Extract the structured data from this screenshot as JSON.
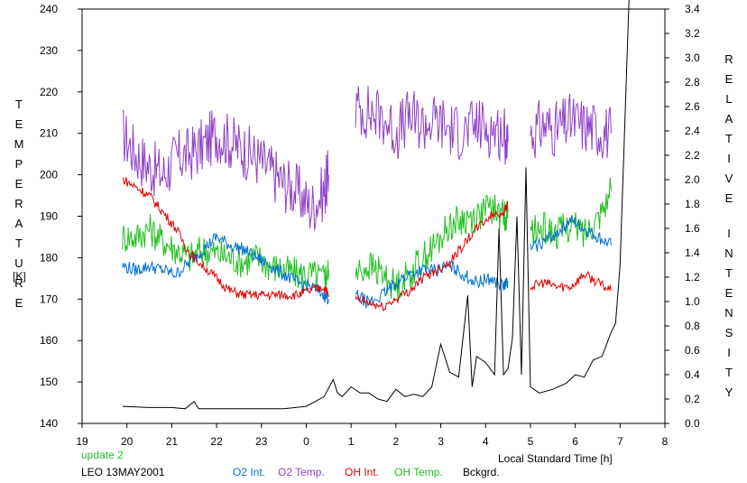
{
  "chart_data": {
    "type": "line",
    "title": "",
    "left_axis": {
      "title": "TEMPERATURE",
      "unit": "[K]",
      "range": [
        140,
        240
      ],
      "ticks": [
        140,
        150,
        160,
        170,
        180,
        190,
        200,
        210,
        220,
        230,
        240
      ]
    },
    "right_axis": {
      "title": "RELATIVE INTENSITY",
      "range": [
        0.0,
        3.4
      ],
      "ticks": [
        "0.0",
        "0.2",
        "0.4",
        "0.6",
        "0.8",
        "1.0",
        "1.2",
        "1.4",
        "1.6",
        "1.8",
        "2.0",
        "2.2",
        "2.4",
        "2.6",
        "2.8",
        "3.0",
        "3.2",
        "3.4"
      ]
    },
    "x_axis": {
      "label": "Local Standard Time [h]",
      "range": [
        19,
        32
      ],
      "tick_labels": [
        "19",
        "20",
        "21",
        "22",
        "23",
        "0",
        "1",
        "2",
        "3",
        "4",
        "5",
        "6",
        "7",
        "8"
      ]
    },
    "annotations": {
      "update": "update 2",
      "site_date": "LEO 13MAY2001"
    },
    "legend": [
      {
        "label": "O2 Int.",
        "color": "#0070d0"
      },
      {
        "label": "O2 Temp.",
        "color": "#9040c8"
      },
      {
        "label": "OH Int.",
        "color": "#e00000"
      },
      {
        "label": "OH Temp.",
        "color": "#20c020"
      },
      {
        "label": "Bckgrd.",
        "color": "#000000"
      }
    ],
    "series": [
      {
        "name": "O2 Temp.",
        "color": "#9040c8",
        "axis": "left",
        "segments": [
          [
            [
              19.9,
              210
            ],
            [
              20.2,
              205
            ],
            [
              20.5,
              202
            ],
            [
              20.8,
              200
            ],
            [
              21.1,
              204
            ],
            [
              21.4,
              205
            ],
            [
              21.7,
              207
            ],
            [
              22.0,
              210
            ],
            [
              22.3,
              208
            ],
            [
              22.6,
              206
            ],
            [
              22.9,
              204
            ],
            [
              23.2,
              201
            ],
            [
              23.5,
              198
            ],
            [
              23.8,
              196
            ],
            [
              24.1,
              192
            ],
            [
              24.4,
              196
            ],
            [
              24.5,
              200
            ]
          ],
          [
            [
              25.1,
              216
            ],
            [
              25.4,
              215
            ],
            [
              25.7,
              214
            ],
            [
              26.0,
              210
            ],
            [
              26.3,
              214
            ],
            [
              26.6,
              212
            ],
            [
              26.9,
              213
            ],
            [
              27.2,
              211
            ],
            [
              27.5,
              210
            ],
            [
              27.8,
              212
            ],
            [
              28.1,
              211
            ],
            [
              28.4,
              210
            ],
            [
              28.5,
              208
            ]
          ],
          [
            [
              29.0,
              210
            ],
            [
              29.3,
              212
            ],
            [
              29.6,
              211
            ],
            [
              29.9,
              213
            ],
            [
              30.2,
              212
            ],
            [
              30.5,
              211
            ],
            [
              30.8,
              210
            ]
          ]
        ]
      },
      {
        "name": "OH Temp.",
        "color": "#20c020",
        "axis": "left",
        "segments": [
          [
            [
              19.9,
              185
            ],
            [
              20.2,
              185
            ],
            [
              20.5,
              187
            ],
            [
              20.8,
              184
            ],
            [
              21.1,
              182
            ],
            [
              21.4,
              180
            ],
            [
              21.7,
              182
            ],
            [
              22.0,
              181
            ],
            [
              22.3,
              180
            ],
            [
              22.6,
              179
            ],
            [
              22.9,
              180
            ],
            [
              23.2,
              178
            ],
            [
              23.5,
              177
            ],
            [
              23.8,
              176
            ],
            [
              24.1,
              176
            ],
            [
              24.4,
              175
            ],
            [
              24.5,
              177
            ]
          ],
          [
            [
              25.1,
              176
            ],
            [
              25.4,
              178
            ],
            [
              25.7,
              176
            ],
            [
              26.0,
              173
            ],
            [
              26.3,
              176
            ],
            [
              26.6,
              180
            ],
            [
              26.9,
              183
            ],
            [
              27.2,
              188
            ],
            [
              27.5,
              189
            ],
            [
              27.8,
              190
            ],
            [
              28.1,
              192
            ],
            [
              28.4,
              190
            ],
            [
              28.5,
              191
            ]
          ],
          [
            [
              29.0,
              186
            ],
            [
              29.3,
              187
            ],
            [
              29.6,
              186
            ],
            [
              29.9,
              188
            ],
            [
              30.2,
              186
            ],
            [
              30.5,
              190
            ],
            [
              30.8,
              196
            ]
          ]
        ]
      },
      {
        "name": "O2 Int.",
        "color": "#0070d0",
        "axis": "left",
        "segments": [
          [
            [
              19.9,
              178
            ],
            [
              20.2,
              177
            ],
            [
              20.5,
              178
            ],
            [
              20.8,
              177
            ],
            [
              21.1,
              176
            ],
            [
              21.4,
              179
            ],
            [
              21.7,
              182
            ],
            [
              22.0,
              185
            ],
            [
              22.3,
              183
            ],
            [
              22.6,
              182
            ],
            [
              22.9,
              180
            ],
            [
              23.2,
              178
            ],
            [
              23.5,
              176
            ],
            [
              23.8,
              174
            ],
            [
              24.1,
              173
            ],
            [
              24.4,
              171
            ],
            [
              24.5,
              170
            ]
          ],
          [
            [
              25.1,
              171
            ],
            [
              25.4,
              169
            ],
            [
              25.7,
              171
            ],
            [
              26.0,
              174
            ],
            [
              26.3,
              176
            ],
            [
              26.6,
              177
            ],
            [
              26.9,
              177
            ],
            [
              27.2,
              178
            ],
            [
              27.5,
              176
            ],
            [
              27.8,
              174
            ],
            [
              28.1,
              175
            ],
            [
              28.4,
              173
            ],
            [
              28.5,
              174
            ]
          ],
          [
            [
              29.0,
              182
            ],
            [
              29.3,
              184
            ],
            [
              29.6,
              186
            ],
            [
              29.9,
              189
            ],
            [
              30.2,
              187
            ],
            [
              30.5,
              185
            ],
            [
              30.8,
              183
            ]
          ]
        ]
      },
      {
        "name": "OH Int.",
        "color": "#e00000",
        "axis": "left",
        "segments": [
          [
            [
              19.9,
              199
            ],
            [
              20.2,
              197
            ],
            [
              20.5,
              195
            ],
            [
              20.8,
              191
            ],
            [
              21.1,
              187
            ],
            [
              21.4,
              181
            ],
            [
              21.7,
              178
            ],
            [
              22.0,
              175
            ],
            [
              22.3,
              172
            ],
            [
              22.6,
              171
            ],
            [
              22.9,
              171
            ],
            [
              23.2,
              171
            ],
            [
              23.5,
              171
            ],
            [
              23.8,
              171
            ],
            [
              24.1,
              172
            ],
            [
              24.4,
              173
            ],
            [
              24.5,
              171
            ]
          ],
          [
            [
              25.1,
              170
            ],
            [
              25.4,
              169
            ],
            [
              25.7,
              168
            ],
            [
              26.0,
              170
            ],
            [
              26.3,
              172
            ],
            [
              26.6,
              175
            ],
            [
              26.9,
              177
            ],
            [
              27.2,
              179
            ],
            [
              27.5,
              183
            ],
            [
              27.8,
              187
            ],
            [
              28.1,
              190
            ],
            [
              28.4,
              191
            ],
            [
              28.5,
              193
            ]
          ],
          [
            [
              29.0,
              173
            ],
            [
              29.3,
              174
            ],
            [
              29.6,
              173
            ],
            [
              29.9,
              173
            ],
            [
              30.2,
              176
            ],
            [
              30.5,
              174
            ],
            [
              30.8,
              172
            ]
          ]
        ]
      },
      {
        "name": "Bckgrd.",
        "color": "#000000",
        "axis": "right",
        "points": [
          [
            19.9,
            0.14
          ],
          [
            20.5,
            0.13
          ],
          [
            21.0,
            0.13
          ],
          [
            21.3,
            0.12
          ],
          [
            21.5,
            0.18
          ],
          [
            21.6,
            0.12
          ],
          [
            22.0,
            0.12
          ],
          [
            22.5,
            0.12
          ],
          [
            23.0,
            0.12
          ],
          [
            23.5,
            0.12
          ],
          [
            24.0,
            0.14
          ],
          [
            24.2,
            0.18
          ],
          [
            24.4,
            0.22
          ],
          [
            24.6,
            0.36
          ],
          [
            24.7,
            0.25
          ],
          [
            24.8,
            0.22
          ],
          [
            25.0,
            0.3
          ],
          [
            25.2,
            0.25
          ],
          [
            25.4,
            0.25
          ],
          [
            25.6,
            0.2
          ],
          [
            25.8,
            0.18
          ],
          [
            26.0,
            0.28
          ],
          [
            26.2,
            0.22
          ],
          [
            26.4,
            0.24
          ],
          [
            26.6,
            0.22
          ],
          [
            26.8,
            0.3
          ],
          [
            27.0,
            0.65
          ],
          [
            27.2,
            0.42
          ],
          [
            27.4,
            0.38
          ],
          [
            27.6,
            1.05
          ],
          [
            27.7,
            0.3
          ],
          [
            27.8,
            0.55
          ],
          [
            28.0,
            0.5
          ],
          [
            28.2,
            0.4
          ],
          [
            28.3,
            1.6
          ],
          [
            28.4,
            0.4
          ],
          [
            28.5,
            0.45
          ],
          [
            28.6,
            0.7
          ],
          [
            28.7,
            1.7
          ],
          [
            28.8,
            0.4
          ],
          [
            28.9,
            2.1
          ],
          [
            29.0,
            0.3
          ],
          [
            29.2,
            0.25
          ],
          [
            29.5,
            0.28
          ],
          [
            29.8,
            0.33
          ],
          [
            30.0,
            0.4
          ],
          [
            30.2,
            0.38
          ],
          [
            30.4,
            0.52
          ],
          [
            30.6,
            0.55
          ],
          [
            30.8,
            0.75
          ],
          [
            30.9,
            0.82
          ],
          [
            31.0,
            1.3
          ],
          [
            31.1,
            2.4
          ],
          [
            31.2,
            3.5
          ]
        ]
      }
    ]
  }
}
